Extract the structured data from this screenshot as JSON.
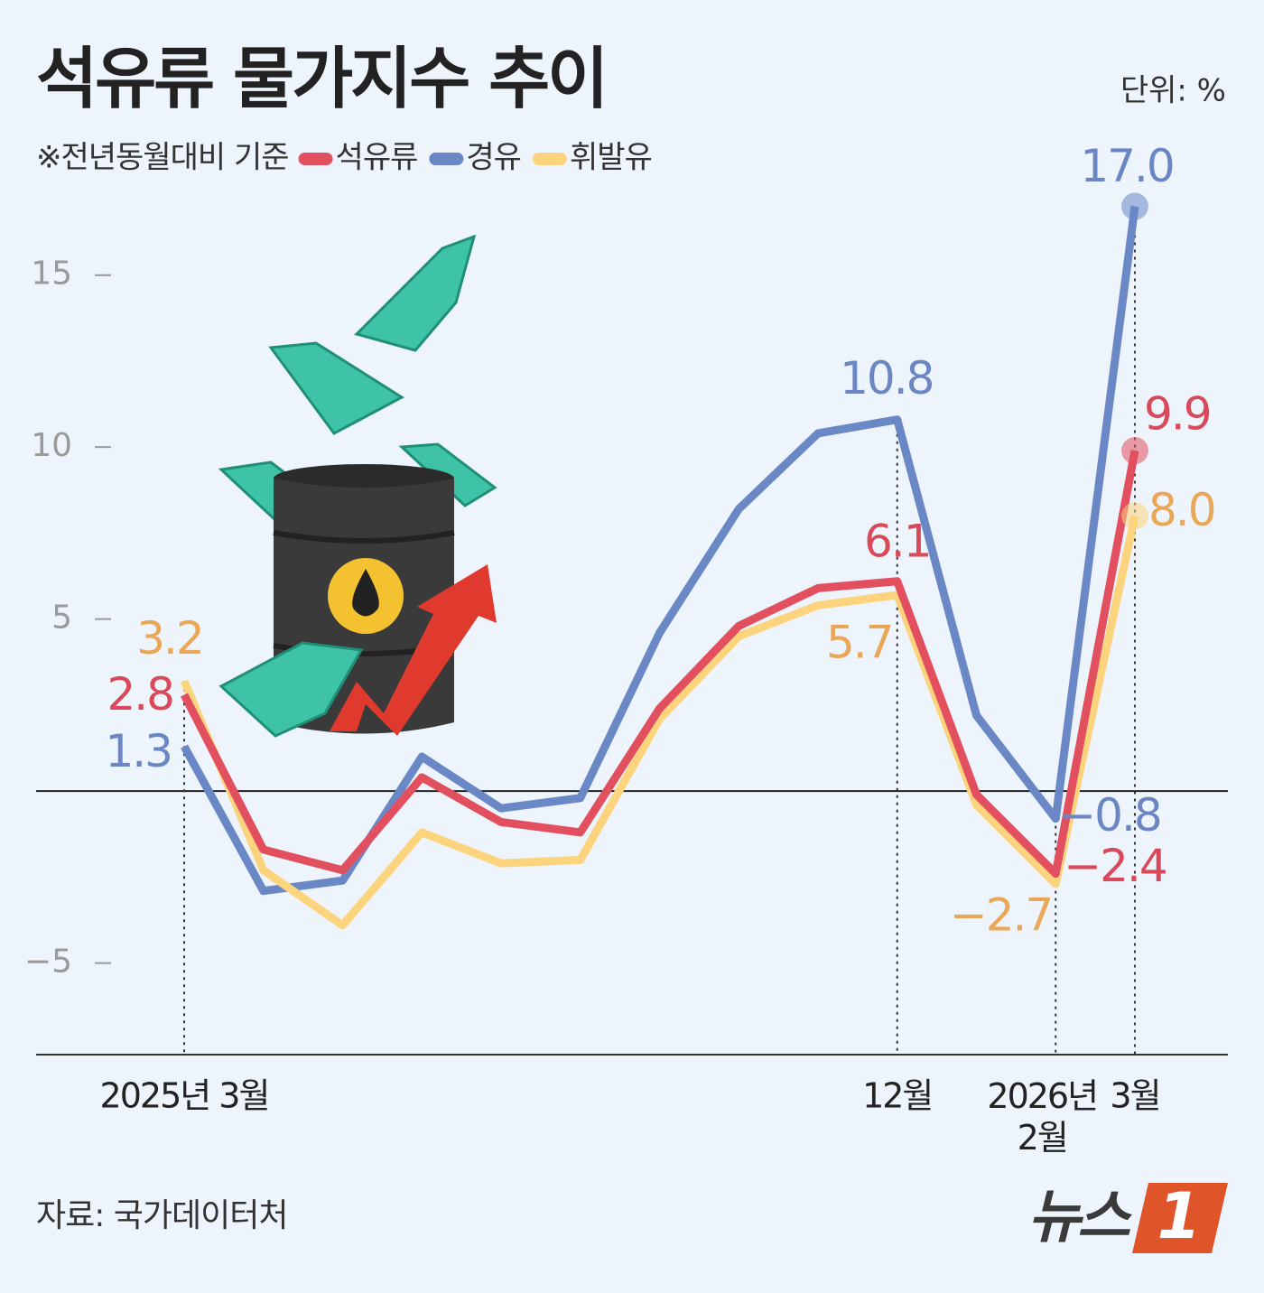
{
  "chart_data": {
    "type": "line",
    "title": "석유류 물가지수 추이",
    "unit": "단위: %",
    "note": "※전년동월대비 기준",
    "source": "자료: 국가데이터처",
    "logo": {
      "text": "뉴스",
      "badge": "1"
    },
    "categories": [
      "2025년 3월",
      null,
      null,
      null,
      null,
      null,
      null,
      null,
      null,
      "12월",
      null,
      "2026년\n2월",
      "3월"
    ],
    "series": [
      {
        "name": "석유류",
        "color": "#e2505f",
        "label_color": "#d9495a",
        "values": [
          2.8,
          -1.7,
          -2.3,
          0.4,
          -0.9,
          -1.2,
          2.4,
          4.8,
          5.9,
          6.1,
          -0.1,
          -2.4,
          9.9
        ],
        "value_labels": [
          "2.8",
          null,
          null,
          null,
          null,
          null,
          null,
          null,
          null,
          "6.1",
          null,
          "−2.4",
          "9.9"
        ]
      },
      {
        "name": "경유",
        "color": "#6a88c6",
        "label_color": "#6a86c4",
        "values": [
          1.3,
          -2.9,
          -2.6,
          1.0,
          -0.5,
          -0.2,
          4.6,
          8.2,
          10.4,
          10.8,
          2.2,
          -0.8,
          17.0
        ],
        "value_labels": [
          "1.3",
          null,
          null,
          null,
          null,
          null,
          null,
          null,
          null,
          "10.8",
          null,
          "−0.8",
          "17.0"
        ]
      },
      {
        "name": "휘발유",
        "color": "#fcd47e",
        "label_color": "#eaa757",
        "values": [
          3.2,
          -2.3,
          -3.9,
          -1.2,
          -2.1,
          -2.0,
          2.1,
          4.5,
          5.4,
          5.7,
          -0.4,
          -2.7,
          8.0
        ],
        "value_labels": [
          "3.2",
          null,
          null,
          null,
          null,
          null,
          null,
          null,
          null,
          "5.7",
          null,
          "−2.7",
          "8.0"
        ]
      }
    ],
    "ylim": [
      -7.66,
      22
    ],
    "yticks": [
      {
        "value": -5,
        "label": "−5"
      },
      5,
      10,
      15
    ],
    "zero_line": true,
    "grid": false
  }
}
